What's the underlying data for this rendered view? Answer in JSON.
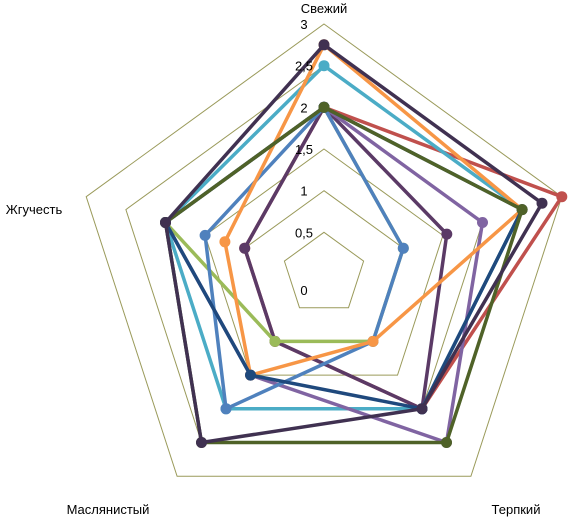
{
  "chart_data": {
    "type": "radar",
    "axes": [
      "Свежий",
      "Терпкий",
      "Маслянистый",
      "Жгучесть"
    ],
    "spokes": 5,
    "rlim": [
      0,
      3
    ],
    "ticks": [
      "0",
      "0,5",
      "1",
      "1,5",
      "2",
      "2,5",
      "3"
    ],
    "grid": true,
    "legend": "none",
    "grid_color": "#9a9a5a",
    "series": [
      {
        "color": "#c0504d",
        "values": [
          2.0,
          3.0,
          2.0,
          1.0,
          1.0
        ]
      },
      {
        "color": "#5b3a66",
        "values": [
          2.0,
          1.55,
          2.0,
          1.0,
          1.0
        ]
      },
      {
        "color": "#9bbb59",
        "values": [
          2.0,
          1.0,
          1.0,
          1.0,
          2.0
        ]
      },
      {
        "color": "#4bacc6",
        "values": [
          2.5,
          2.5,
          2.0,
          2.0,
          2.0
        ]
      },
      {
        "color": "#8064a2",
        "values": [
          2.0,
          2.0,
          2.5,
          1.5,
          2.0
        ]
      },
      {
        "color": "#4f81bd",
        "values": [
          2.0,
          1.0,
          1.0,
          2.0,
          1.5
        ]
      },
      {
        "color": "#f79646",
        "values": [
          2.75,
          2.5,
          1.0,
          1.5,
          1.25
        ]
      },
      {
        "color": "#1f497d",
        "values": [
          2.0,
          2.5,
          2.0,
          1.5,
          2.0
        ]
      },
      {
        "color": "#4f6228",
        "values": [
          2.0,
          2.5,
          2.5,
          2.5,
          2.0
        ]
      },
      {
        "color": "#403151",
        "values": [
          2.75,
          2.75,
          2.0,
          2.5,
          2.0
        ]
      }
    ]
  }
}
